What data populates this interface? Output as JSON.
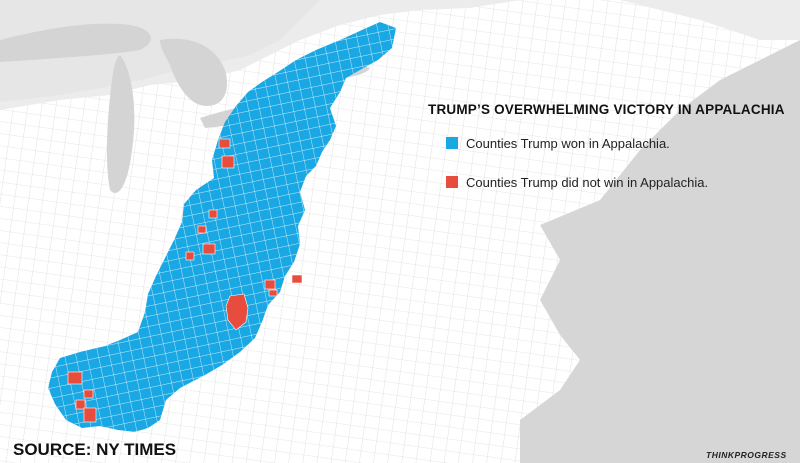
{
  "map": {
    "title": "TRUMP’S OVERWHELMING VICTORY IN APPALACHIA",
    "legend": [
      {
        "label": "Counties Trump won in Appalachia.",
        "color": "#1aa8e4"
      },
      {
        "label": "Counties Trump did not win in Appalachia.",
        "color": "#e84c3d"
      }
    ],
    "source": "SOURCE: NY TIMES",
    "brand": "THINKPROGRESS",
    "colors": {
      "won": "#1aa8e4",
      "lost": "#e84c3d",
      "background_land": "#ececec",
      "land": "#ffffff",
      "water": "#d4d4d4",
      "county_lines": "#c9c9c9"
    }
  }
}
